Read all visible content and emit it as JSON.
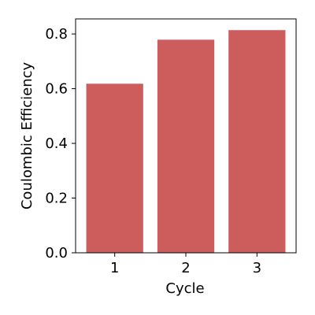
{
  "chart_data": {
    "type": "bar",
    "title": "",
    "xlabel": "Cycle",
    "ylabel": "Coulombic Efficiency",
    "categories": [
      "1",
      "2",
      "3"
    ],
    "values": [
      0.618,
      0.779,
      0.814
    ],
    "ylim": [
      0,
      0.855
    ],
    "yticks": [
      "0.0",
      "0.2",
      "0.4",
      "0.6",
      "0.8"
    ],
    "grid": false,
    "legend": "none",
    "bar_color": "#cd5c5c"
  }
}
